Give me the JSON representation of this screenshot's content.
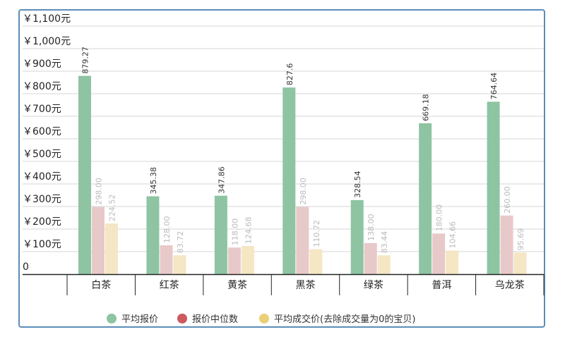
{
  "chart_data": {
    "type": "bar",
    "categories": [
      "白茶",
      "红茶",
      "黄茶",
      "黑茶",
      "绿茶",
      "普洱",
      "乌龙茶"
    ],
    "y_ticks": [
      "0",
      "￥100元",
      "￥200元",
      "￥300元",
      "￥400元",
      "￥500元",
      "￥600元",
      "￥700元",
      "￥800元",
      "￥900元",
      "￥1,000元",
      "￥1,100元"
    ],
    "ylim": [
      0,
      1100
    ],
    "grid": true,
    "legend_position": "bottom",
    "series": [
      {
        "name": "平均报价",
        "color": "#8ec4a2",
        "label_color": "#333333",
        "values": [
          879.27,
          345.38,
          347.86,
          827.6,
          328.54,
          669.18,
          764.64
        ],
        "labels": [
          "879.27",
          "345.38",
          "347.86",
          "827.6",
          "328.54",
          "669.18",
          "764.64"
        ]
      },
      {
        "name": "报价中位数",
        "color": "#e8c9c9",
        "legend_color": "#cc5a5e",
        "label_color": "#bbbbbb",
        "values": [
          298.0,
          128.0,
          118.0,
          298.0,
          138.0,
          180.0,
          260.0
        ],
        "labels": [
          "298.00",
          "128.00",
          "118.00",
          "298.00",
          "138.00",
          "180.00",
          "260.00"
        ]
      },
      {
        "name": "平均成交价(去除成交量为0的宝贝)",
        "color": "#f5e6c4",
        "legend_color": "#ebcf76",
        "label_color": "#bbbbbb",
        "values": [
          224.52,
          83.72,
          124.68,
          110.72,
          83.44,
          104.66,
          95.69
        ],
        "labels": [
          "224.52",
          "83.72",
          "124.68",
          "110.72",
          "83.44",
          "104.66",
          "95.69"
        ]
      }
    ]
  }
}
